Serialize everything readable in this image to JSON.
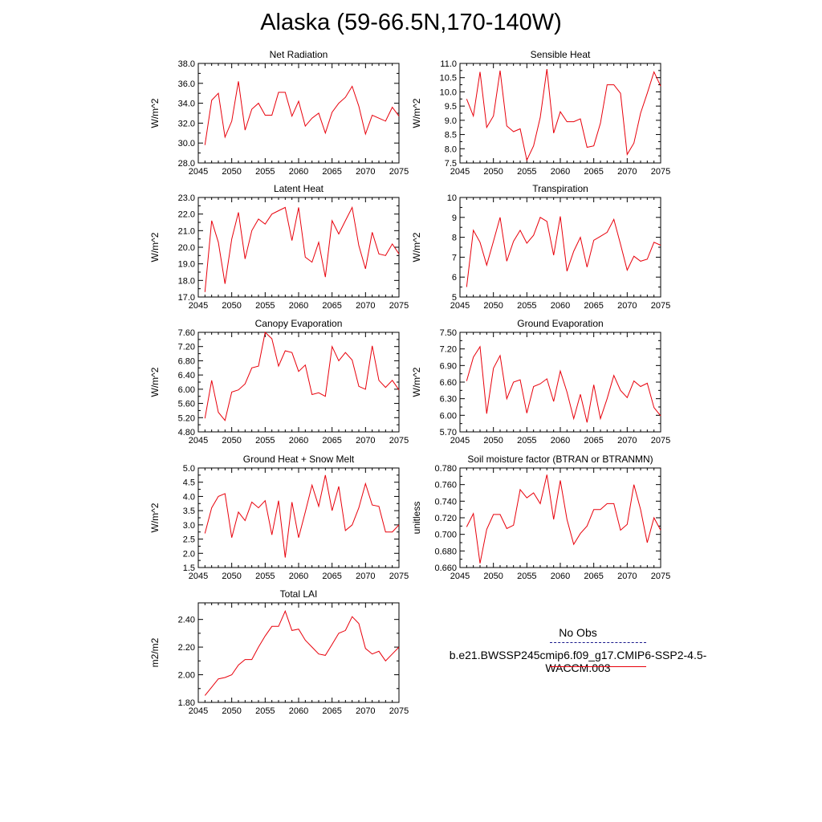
{
  "page": {
    "title": "Alaska (59-66.5N,170-140W)"
  },
  "legend": {
    "items": [
      {
        "label": "No Obs",
        "color": "#1a1a8c",
        "dash": "dashed"
      },
      {
        "label": "b.e21.BWSSP245cmip6.f09_g17.CMIP6-SSP2-4.5-WACCM.003",
        "color": "#e8000b",
        "dash": "solid"
      }
    ]
  },
  "chart_data": [
    {
      "type": "line",
      "title": "Net Radiation",
      "ylabel": "W/m^2",
      "xlabel": "",
      "xlim": [
        2045,
        2075
      ],
      "ylim": [
        28.0,
        38.0
      ],
      "xticks": [
        2045,
        2050,
        2055,
        2060,
        2065,
        2070,
        2075
      ],
      "yticks": [
        28.0,
        30.0,
        32.0,
        34.0,
        36.0,
        38.0
      ],
      "ydecimals": 1,
      "series": [
        {
          "color": "#e8000b",
          "x": [
            2046,
            2047,
            2048,
            2049,
            2050,
            2051,
            2052,
            2053,
            2054,
            2055,
            2056,
            2057,
            2058,
            2059,
            2060,
            2061,
            2062,
            2063,
            2064,
            2065,
            2066,
            2067,
            2068,
            2069,
            2070,
            2071,
            2072,
            2073,
            2074,
            2075
          ],
          "y": [
            29.8,
            34.3,
            35.0,
            30.6,
            32.2,
            36.2,
            31.3,
            33.4,
            34.0,
            32.8,
            32.8,
            35.1,
            35.1,
            32.7,
            34.2,
            31.7,
            32.5,
            33.0,
            31.0,
            33.1,
            34.0,
            34.6,
            35.7,
            33.7,
            30.9,
            32.8,
            32.5,
            32.2,
            33.6,
            32.7
          ]
        }
      ]
    },
    {
      "type": "line",
      "title": "Sensible Heat",
      "ylabel": "W/m^2",
      "xlabel": "",
      "xlim": [
        2045,
        2075
      ],
      "ylim": [
        7.5,
        11.0
      ],
      "xticks": [
        2045,
        2050,
        2055,
        2060,
        2065,
        2070,
        2075
      ],
      "yticks": [
        7.5,
        8.0,
        8.5,
        9.0,
        9.5,
        10.0,
        10.5,
        11.0
      ],
      "ydecimals": 1,
      "series": [
        {
          "color": "#e8000b",
          "x": [
            2046,
            2047,
            2048,
            2049,
            2050,
            2051,
            2052,
            2053,
            2054,
            2055,
            2056,
            2057,
            2058,
            2059,
            2060,
            2061,
            2062,
            2063,
            2064,
            2065,
            2066,
            2067,
            2068,
            2069,
            2070,
            2071,
            2072,
            2073,
            2074,
            2075
          ],
          "y": [
            9.75,
            9.15,
            10.7,
            8.75,
            9.15,
            10.75,
            8.8,
            8.6,
            8.7,
            7.6,
            8.1,
            9.1,
            10.8,
            8.55,
            9.3,
            8.95,
            8.95,
            9.05,
            8.05,
            8.1,
            8.9,
            10.25,
            10.25,
            9.95,
            7.8,
            8.2,
            9.25,
            9.95,
            10.7,
            10.2
          ]
        }
      ]
    },
    {
      "type": "line",
      "title": "Latent Heat",
      "ylabel": "W/m^2",
      "xlabel": "",
      "xlim": [
        2045,
        2075
      ],
      "ylim": [
        17.0,
        23.0
      ],
      "xticks": [
        2045,
        2050,
        2055,
        2060,
        2065,
        2070,
        2075
      ],
      "yticks": [
        17.0,
        18.0,
        19.0,
        20.0,
        21.0,
        22.0,
        23.0
      ],
      "ydecimals": 1,
      "series": [
        {
          "color": "#e8000b",
          "x": [
            2046,
            2047,
            2048,
            2049,
            2050,
            2051,
            2052,
            2053,
            2054,
            2055,
            2056,
            2057,
            2058,
            2059,
            2060,
            2061,
            2062,
            2063,
            2064,
            2065,
            2066,
            2067,
            2068,
            2069,
            2070,
            2071,
            2072,
            2073,
            2074,
            2075
          ],
          "y": [
            17.3,
            21.6,
            20.3,
            17.8,
            20.5,
            22.1,
            19.3,
            21.0,
            21.7,
            21.4,
            22.0,
            22.2,
            22.4,
            20.4,
            22.4,
            19.4,
            19.1,
            20.3,
            18.2,
            21.6,
            20.8,
            21.6,
            22.4,
            20.1,
            18.7,
            20.9,
            19.6,
            19.5,
            20.2,
            19.6
          ]
        }
      ]
    },
    {
      "type": "line",
      "title": "Transpiration",
      "ylabel": "W/m^2",
      "xlabel": "",
      "xlim": [
        2045,
        2075
      ],
      "ylim": [
        5,
        10
      ],
      "xticks": [
        2045,
        2050,
        2055,
        2060,
        2065,
        2070,
        2075
      ],
      "yticks": [
        5,
        6,
        7,
        8,
        9,
        10
      ],
      "ydecimals": 0,
      "series": [
        {
          "color": "#e8000b",
          "x": [
            2046,
            2047,
            2048,
            2049,
            2050,
            2051,
            2052,
            2053,
            2054,
            2055,
            2056,
            2057,
            2058,
            2059,
            2060,
            2061,
            2062,
            2063,
            2064,
            2065,
            2066,
            2067,
            2068,
            2069,
            2070,
            2071,
            2072,
            2073,
            2074,
            2075
          ],
          "y": [
            5.5,
            8.35,
            7.75,
            6.6,
            7.8,
            9.0,
            6.8,
            7.8,
            8.35,
            7.7,
            8.1,
            9.0,
            8.8,
            7.1,
            9.05,
            6.3,
            7.3,
            8.0,
            6.5,
            7.85,
            8.05,
            8.25,
            8.9,
            7.65,
            6.35,
            7.05,
            6.8,
            6.9,
            7.75,
            7.6
          ]
        }
      ]
    },
    {
      "type": "line",
      "title": "Canopy Evaporation",
      "ylabel": "W/m^2",
      "xlabel": "",
      "xlim": [
        2045,
        2075
      ],
      "ylim": [
        4.8,
        7.6
      ],
      "xticks": [
        2045,
        2050,
        2055,
        2060,
        2065,
        2070,
        2075
      ],
      "yticks": [
        4.8,
        5.2,
        5.6,
        6.0,
        6.4,
        6.8,
        7.2,
        7.6
      ],
      "ydecimals": 2,
      "series": [
        {
          "color": "#e8000b",
          "x": [
            2046,
            2047,
            2048,
            2049,
            2050,
            2051,
            2052,
            2053,
            2054,
            2055,
            2056,
            2057,
            2058,
            2059,
            2060,
            2061,
            2062,
            2063,
            2064,
            2065,
            2066,
            2067,
            2068,
            2069,
            2070,
            2071,
            2072,
            2073,
            2074,
            2075
          ],
          "y": [
            5.18,
            6.25,
            5.35,
            5.12,
            5.92,
            5.98,
            6.15,
            6.6,
            6.65,
            7.6,
            7.42,
            6.65,
            7.08,
            7.03,
            6.5,
            6.68,
            5.85,
            5.9,
            5.8,
            7.2,
            6.8,
            7.03,
            6.82,
            6.08,
            6.0,
            7.22,
            6.25,
            6.05,
            6.25,
            5.98
          ]
        }
      ]
    },
    {
      "type": "line",
      "title": "Ground Evaporation",
      "ylabel": "W/m^2",
      "xlabel": "",
      "xlim": [
        2045,
        2075
      ],
      "ylim": [
        5.7,
        7.5
      ],
      "xticks": [
        2045,
        2050,
        2055,
        2060,
        2065,
        2070,
        2075
      ],
      "yticks": [
        5.7,
        6.0,
        6.3,
        6.6,
        6.9,
        7.2,
        7.5
      ],
      "ydecimals": 2,
      "series": [
        {
          "color": "#e8000b",
          "x": [
            2046,
            2047,
            2048,
            2049,
            2050,
            2051,
            2052,
            2053,
            2054,
            2055,
            2056,
            2057,
            2058,
            2059,
            2060,
            2061,
            2062,
            2063,
            2064,
            2065,
            2066,
            2067,
            2068,
            2069,
            2070,
            2071,
            2072,
            2073,
            2074,
            2075
          ],
          "y": [
            6.62,
            7.05,
            7.24,
            6.03,
            6.85,
            7.08,
            6.3,
            6.6,
            6.64,
            6.04,
            6.52,
            6.57,
            6.66,
            6.25,
            6.8,
            6.42,
            5.94,
            6.38,
            5.87,
            6.55,
            5.94,
            6.3,
            6.72,
            6.45,
            6.32,
            6.62,
            6.52,
            6.58,
            6.14,
            5.99
          ]
        }
      ]
    },
    {
      "type": "line",
      "title": "Ground Heat + Snow Melt",
      "ylabel": "W/m^2",
      "xlabel": "",
      "xlim": [
        2045,
        2075
      ],
      "ylim": [
        1.5,
        5.0
      ],
      "xticks": [
        2045,
        2050,
        2055,
        2060,
        2065,
        2070,
        2075
      ],
      "yticks": [
        1.5,
        2.0,
        2.5,
        3.0,
        3.5,
        4.0,
        4.5,
        5.0
      ],
      "ydecimals": 1,
      "series": [
        {
          "color": "#e8000b",
          "x": [
            2046,
            2047,
            2048,
            2049,
            2050,
            2051,
            2052,
            2053,
            2054,
            2055,
            2056,
            2057,
            2058,
            2059,
            2060,
            2061,
            2062,
            2063,
            2064,
            2065,
            2066,
            2067,
            2068,
            2069,
            2070,
            2071,
            2072,
            2073,
            2074,
            2075
          ],
          "y": [
            2.7,
            3.6,
            4.0,
            4.1,
            2.55,
            3.45,
            3.15,
            3.8,
            3.6,
            3.85,
            2.65,
            3.85,
            1.85,
            3.8,
            2.55,
            3.45,
            4.4,
            3.65,
            4.75,
            3.5,
            4.35,
            2.8,
            3.0,
            3.6,
            4.45,
            3.7,
            3.65,
            2.75,
            2.75,
            3.0
          ]
        }
      ]
    },
    {
      "type": "line",
      "title": "Soil moisture factor (BTRAN or BTRANMN)",
      "ylabel": "unitless",
      "xlabel": "",
      "xlim": [
        2045,
        2075
      ],
      "ylim": [
        0.66,
        0.78
      ],
      "xticks": [
        2045,
        2050,
        2055,
        2060,
        2065,
        2070,
        2075
      ],
      "yticks": [
        0.66,
        0.68,
        0.7,
        0.72,
        0.74,
        0.76,
        0.78
      ],
      "ydecimals": 3,
      "series": [
        {
          "color": "#e8000b",
          "x": [
            2046,
            2047,
            2048,
            2049,
            2050,
            2051,
            2052,
            2053,
            2054,
            2055,
            2056,
            2057,
            2058,
            2059,
            2060,
            2061,
            2062,
            2063,
            2064,
            2065,
            2066,
            2067,
            2068,
            2069,
            2070,
            2071,
            2072,
            2073,
            2074,
            2075
          ],
          "y": [
            0.709,
            0.725,
            0.665,
            0.706,
            0.724,
            0.724,
            0.707,
            0.711,
            0.754,
            0.744,
            0.75,
            0.737,
            0.772,
            0.718,
            0.765,
            0.718,
            0.688,
            0.701,
            0.71,
            0.73,
            0.73,
            0.737,
            0.737,
            0.705,
            0.712,
            0.76,
            0.73,
            0.69,
            0.72,
            0.705
          ]
        }
      ]
    },
    {
      "type": "line",
      "title": "Total LAI",
      "ylabel": "m2/m2",
      "xlabel": "",
      "xlim": [
        2045,
        2075
      ],
      "ylim": [
        1.8,
        2.52
      ],
      "xticks": [
        2045,
        2050,
        2055,
        2060,
        2065,
        2070,
        2075
      ],
      "yticks": [
        1.8,
        2.0,
        2.2,
        2.4
      ],
      "ydecimals": 2,
      "series": [
        {
          "color": "#e8000b",
          "x": [
            2046,
            2047,
            2048,
            2049,
            2050,
            2051,
            2052,
            2053,
            2054,
            2055,
            2056,
            2057,
            2058,
            2059,
            2060,
            2061,
            2062,
            2063,
            2064,
            2065,
            2066,
            2067,
            2068,
            2069,
            2070,
            2071,
            2072,
            2073,
            2074,
            2075
          ],
          "y": [
            1.85,
            1.91,
            1.97,
            1.98,
            2.0,
            2.07,
            2.11,
            2.11,
            2.2,
            2.28,
            2.35,
            2.35,
            2.46,
            2.32,
            2.33,
            2.25,
            2.2,
            2.15,
            2.14,
            2.22,
            2.3,
            2.32,
            2.42,
            2.37,
            2.19,
            2.15,
            2.17,
            2.1,
            2.15,
            2.2
          ]
        }
      ]
    }
  ]
}
